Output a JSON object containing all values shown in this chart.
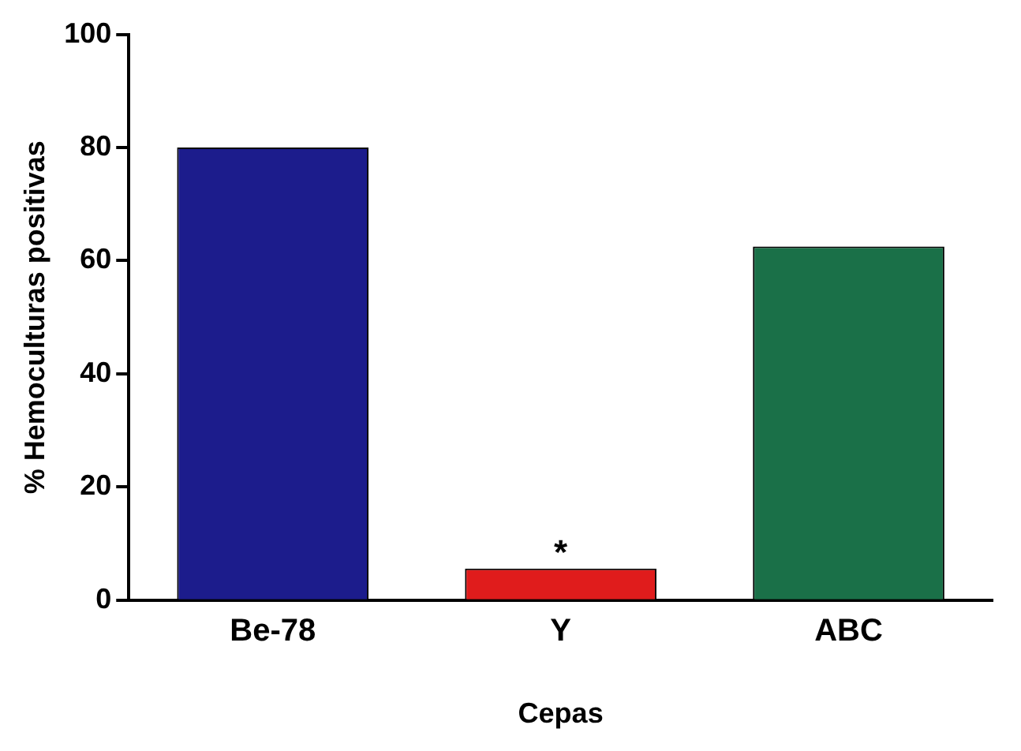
{
  "chart_data": {
    "type": "bar",
    "xlabel": "Cepas",
    "ylabel": "% Hemoculturas positivas",
    "categories": [
      "Be-78",
      "Y",
      "ABC"
    ],
    "values": [
      80,
      5.6,
      62.5
    ],
    "colors": [
      "#1c1c8c",
      "#e01c1c",
      "#1a7048"
    ],
    "ylim": [
      0,
      100
    ],
    "yticks": [
      0,
      20,
      40,
      60,
      80,
      100
    ],
    "grid": false,
    "legend": false,
    "annotations": [
      {
        "text": "*",
        "x": "Y",
        "y": 5.6
      }
    ]
  }
}
